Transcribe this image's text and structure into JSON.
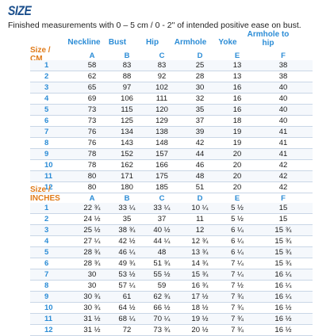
{
  "title": "SIZE",
  "subtitle": "Finished measurements with 0 – 5 cm / 0 - 2\" of intended positive ease on bust.",
  "columns": [
    "Neckline",
    "Bust",
    "Hip",
    "Armhole",
    "Yoke",
    "Armhole to hip"
  ],
  "column_letters": [
    "A",
    "B",
    "C",
    "D",
    "E",
    "F"
  ],
  "cm": {
    "label_line1": "Size /",
    "label_line2": "CM",
    "rows": [
      [
        "1",
        "58",
        "83",
        "83",
        "25",
        "13",
        "38"
      ],
      [
        "2",
        "62",
        "88",
        "92",
        "28",
        "13",
        "38"
      ],
      [
        "3",
        "65",
        "97",
        "102",
        "30",
        "16",
        "40"
      ],
      [
        "4",
        "69",
        "106",
        "111",
        "32",
        "16",
        "40"
      ],
      [
        "5",
        "73",
        "115",
        "120",
        "35",
        "16",
        "40"
      ],
      [
        "6",
        "73",
        "125",
        "129",
        "37",
        "18",
        "40"
      ],
      [
        "7",
        "76",
        "134",
        "138",
        "39",
        "19",
        "41"
      ],
      [
        "8",
        "76",
        "143",
        "148",
        "42",
        "19",
        "41"
      ],
      [
        "9",
        "78",
        "152",
        "157",
        "44",
        "20",
        "41"
      ],
      [
        "10",
        "78",
        "162",
        "166",
        "46",
        "20",
        "42"
      ],
      [
        "11",
        "80",
        "171",
        "175",
        "48",
        "20",
        "42"
      ],
      [
        "12",
        "80",
        "180",
        "185",
        "51",
        "20",
        "42"
      ]
    ]
  },
  "inches": {
    "label_line1": "Size /",
    "label_line2": "INCHES",
    "rows": [
      [
        "1",
        "22 ¾",
        "33 ¼",
        "33 ¼",
        "10 ¼",
        "5 ½",
        "15"
      ],
      [
        "2",
        "24 ½",
        "35",
        "37",
        "11",
        "5 ½",
        "15"
      ],
      [
        "3",
        "25 ½",
        "38 ¾",
        "40 ½",
        "12",
        "6 ¼",
        "15 ¾"
      ],
      [
        "4",
        "27 ¼",
        "42 ½",
        "44 ¼",
        "12 ¾",
        "6 ¼",
        "15 ¾"
      ],
      [
        "5",
        "28 ¾",
        "46 ¼",
        "48",
        "13 ¾",
        "6 ¼",
        "15 ¾"
      ],
      [
        "6",
        "28 ¾",
        "49 ¾",
        "51 ¾",
        "14 ¾",
        "7 ¼",
        "15 ¾"
      ],
      [
        "7",
        "30",
        "53 ½",
        "55 ½",
        "15 ¾",
        "7 ¼",
        "16 ¼"
      ],
      [
        "8",
        "30",
        "57 ¼",
        "59",
        "16 ¾",
        "7 ½",
        "16 ¼"
      ],
      [
        "9",
        "30 ¾",
        "61",
        "62 ¾",
        "17 ½",
        "7 ¾",
        "16 ¼"
      ],
      [
        "10",
        "30 ¾",
        "64 ½",
        "66 ½",
        "18 ½",
        "7 ¾",
        "16 ½"
      ],
      [
        "11",
        "31 ½",
        "68 ¼",
        "70 ¼",
        "19 ½",
        "7 ¾",
        "16 ½"
      ],
      [
        "12",
        "31 ½",
        "72",
        "73 ¾",
        "20 ½",
        "7 ¾",
        "16 ½"
      ]
    ]
  }
}
